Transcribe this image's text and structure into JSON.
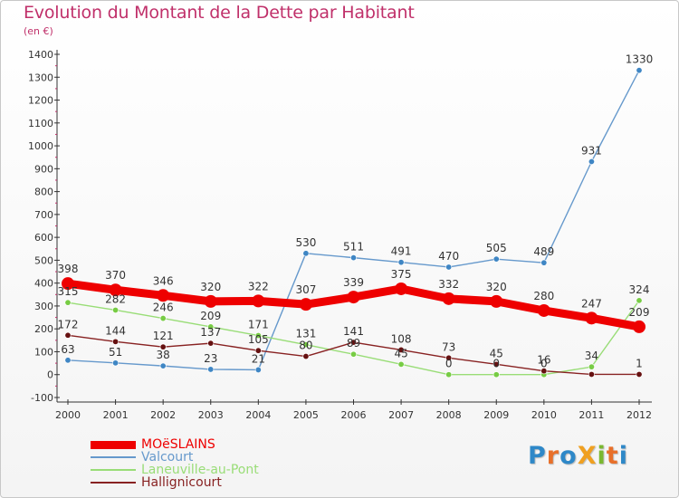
{
  "title": "Evolution du Montant de la Dette par Habitant",
  "subtitle": "(en €)",
  "logo": {
    "text": "ProXiti",
    "letters": [
      {
        "ch": "P",
        "color": "#2e88c8"
      },
      {
        "ch": "r",
        "color": "#e8702a"
      },
      {
        "ch": "o",
        "color": "#2e88c8"
      },
      {
        "ch": "X",
        "color": "#f0a020"
      },
      {
        "ch": "i",
        "color": "#7ab830"
      },
      {
        "ch": "t",
        "color": "#e8702a"
      },
      {
        "ch": "i",
        "color": "#2e88c8"
      }
    ]
  },
  "chart_data": {
    "type": "line",
    "title": "Evolution du Montant de la Dette par Habitant",
    "subtitle": "(en €)",
    "categories": [
      "2000",
      "2001",
      "2002",
      "2003",
      "2004",
      "2005",
      "2006",
      "2007",
      "2008",
      "2009",
      "2010",
      "2011",
      "2012"
    ],
    "ylim": [
      -100,
      1400
    ],
    "yticks": [
      "-100",
      "0",
      "100",
      "200",
      "300",
      "400",
      "500",
      "600",
      "700",
      "800",
      "900",
      "1000",
      "1100",
      "1200",
      "1300",
      "1400"
    ],
    "grid": false,
    "legend_position": "bottom-left",
    "series": [
      {
        "name": "MOëSLAINS",
        "color": "#ee0000",
        "width": "thick",
        "values": [
          398,
          370,
          346,
          320,
          322,
          307,
          339,
          375,
          332,
          320,
          280,
          247,
          209
        ],
        "labels": [
          "398",
          "370",
          "346",
          "320",
          "322",
          "307",
          "339",
          "375",
          "332",
          "320",
          "280",
          "247",
          "209"
        ]
      },
      {
        "name": "Valcourt",
        "color": "#6699cc",
        "marker": "#3f86c4",
        "width": "thin",
        "values": [
          63,
          51,
          38,
          23,
          21,
          530,
          511,
          491,
          470,
          505,
          489,
          931,
          1330
        ],
        "labels": [
          "63",
          "51",
          "38",
          "23",
          "21",
          "530",
          "511",
          "491",
          "470",
          "505",
          "489",
          "931",
          "1330"
        ]
      },
      {
        "name": "Laneuville-au-Pont",
        "color": "#99dd77",
        "marker": "#77cc44",
        "width": "thin",
        "values": [
          315,
          282,
          246,
          209,
          171,
          131,
          89,
          45,
          0,
          0,
          0,
          34,
          324
        ],
        "labels": [
          "315",
          "282",
          "246",
          "209",
          "171",
          "131",
          "89",
          "45",
          "0",
          "0",
          "0",
          "34",
          "324"
        ]
      },
      {
        "name": "Hallignicourt",
        "color": "#882222",
        "marker": "#661111",
        "width": "thin",
        "values": [
          172,
          144,
          121,
          137,
          105,
          80,
          141,
          108,
          73,
          45,
          16,
          1,
          1
        ],
        "labels": [
          "172",
          "144",
          "121",
          "137",
          "105",
          "80",
          "141",
          "108",
          "73",
          "45",
          "16",
          "",
          "1"
        ]
      }
    ]
  }
}
